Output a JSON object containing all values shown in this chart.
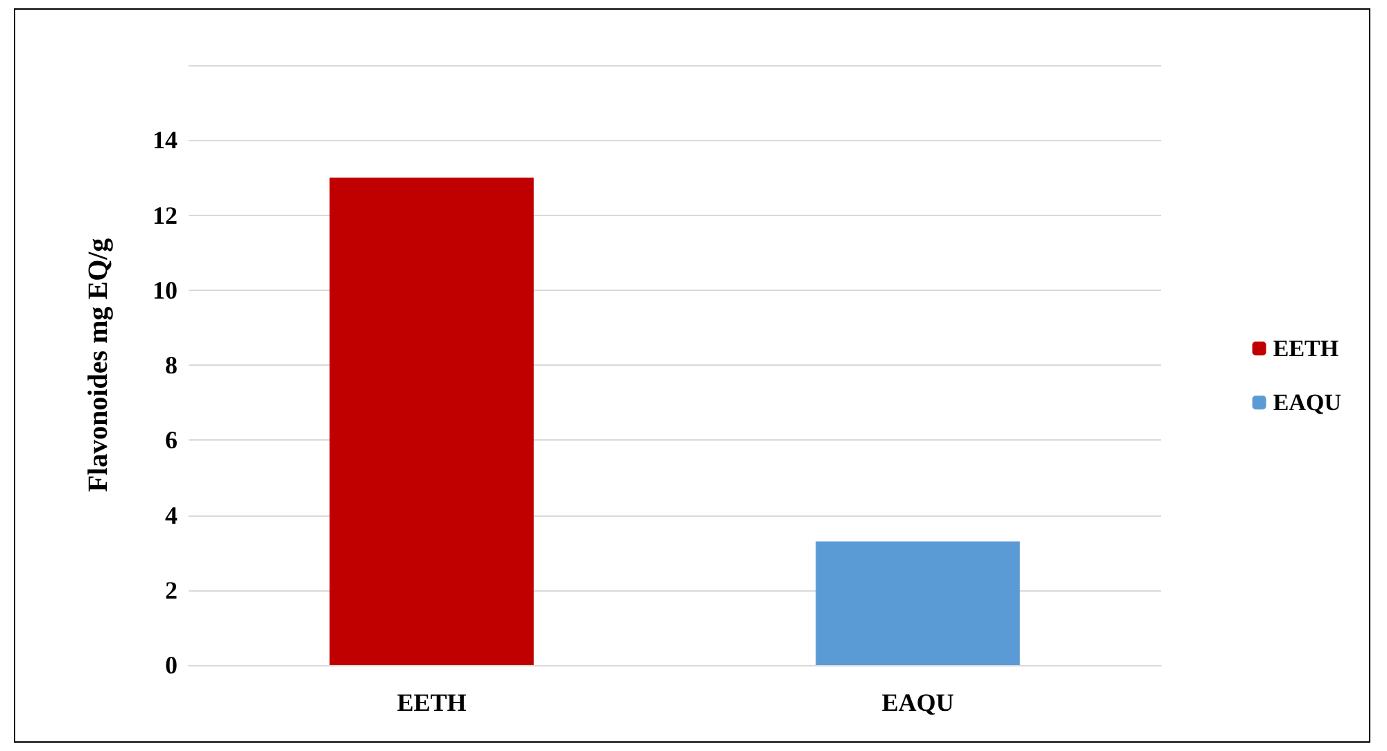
{
  "chart_data": {
    "type": "bar",
    "ylabel": "Flavonoides mg EQ/g",
    "categories": [
      "EETH",
      "EAQU"
    ],
    "series": [
      {
        "name": "EETH",
        "color": "#c00000",
        "values": [
          13,
          null
        ]
      },
      {
        "name": "EAQU",
        "color": "#5b9bd5",
        "values": [
          null,
          3.3
        ]
      }
    ],
    "ylim": [
      0,
      16
    ],
    "yticks": [
      0,
      2,
      4,
      6,
      8,
      10,
      12,
      14,
      {
        "value": 16,
        "label": null
      }
    ],
    "grid": "y",
    "legend": "right"
  }
}
